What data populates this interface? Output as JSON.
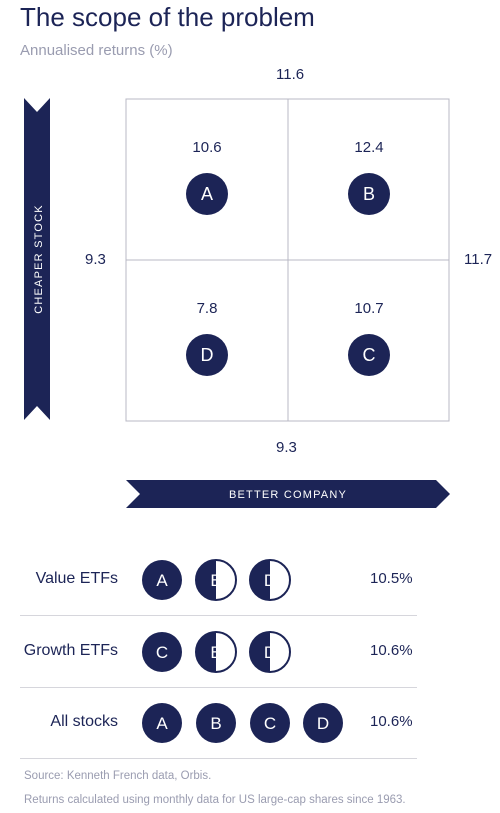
{
  "title": "The scope of the problem",
  "subtitle": "Annualised returns (%)",
  "colors": {
    "navy": "#1c2456",
    "grid": "#b8b8c4",
    "muted": "#9a9cb0"
  },
  "chart_data": {
    "type": "table",
    "title": "The scope of the problem",
    "subtitle": "Annualised returns (%)",
    "x_axis_label": "BETTER COMPANY",
    "y_axis_label": "CHEAPER STOCK",
    "margins": {
      "top": "11.6",
      "left": "9.3",
      "right": "11.7",
      "bottom": "9.3"
    },
    "quadrants": [
      {
        "letter": "A",
        "value": "10.6",
        "row": 0,
        "col": 0
      },
      {
        "letter": "B",
        "value": "12.4",
        "row": 0,
        "col": 1
      },
      {
        "letter": "D",
        "value": "7.8",
        "row": 1,
        "col": 0
      },
      {
        "letter": "C",
        "value": "10.7",
        "row": 1,
        "col": 1
      }
    ],
    "rows": [
      {
        "label": "Value ETFs",
        "value": "10.5%",
        "circles": [
          {
            "letter": "A",
            "fill": "full"
          },
          {
            "letter": "B",
            "fill": "half"
          },
          {
            "letter": "D",
            "fill": "half"
          }
        ]
      },
      {
        "label": "Growth ETFs",
        "value": "10.6%",
        "circles": [
          {
            "letter": "C",
            "fill": "full"
          },
          {
            "letter": "B",
            "fill": "half"
          },
          {
            "letter": "D",
            "fill": "half"
          }
        ]
      },
      {
        "label": "All stocks",
        "value": "10.6%",
        "circles": [
          {
            "letter": "A",
            "fill": "full"
          },
          {
            "letter": "B",
            "fill": "full"
          },
          {
            "letter": "C",
            "fill": "full"
          },
          {
            "letter": "D",
            "fill": "full"
          }
        ]
      }
    ]
  },
  "notes": {
    "source": "Source: Kenneth French data, Orbis.",
    "method": "Returns calculated using monthly data for US large-cap shares since 1963."
  }
}
